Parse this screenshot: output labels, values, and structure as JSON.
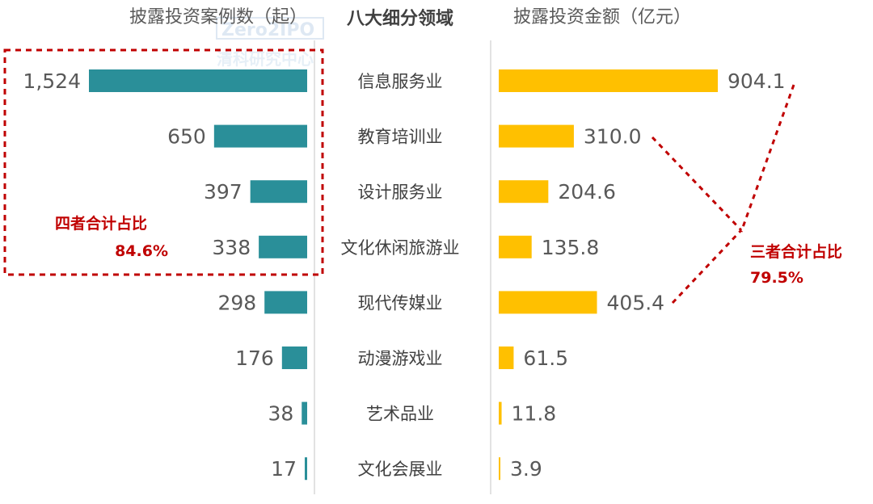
{
  "chart_data": {
    "type": "bar",
    "orientation": "horizontal",
    "center_header": "八大细分领域",
    "categories": [
      "信息服务业",
      "教育培训业",
      "设计服务业",
      "文化休闲旅游业",
      "现代传媒业",
      "动漫游戏业",
      "艺术品业",
      "文化会展业"
    ],
    "series": [
      {
        "name": "披露投资案例数（起）",
        "values": [
          1524,
          650,
          397,
          338,
          298,
          176,
          38,
          17
        ],
        "labels": [
          "1,524",
          "650",
          "397",
          "338",
          "298",
          "176",
          "38",
          "17"
        ],
        "color": "#2a8f99",
        "direction": "left"
      },
      {
        "name": "披露投资金额（亿元）",
        "values": [
          904.1,
          310.0,
          204.6,
          135.8,
          405.4,
          61.5,
          11.8,
          3.9
        ],
        "labels": [
          "904.1",
          "310.0",
          "204.6",
          "135.8",
          "405.4",
          "61.5",
          "11.8",
          "3.9"
        ],
        "color": "#ffc000",
        "direction": "right"
      }
    ],
    "annotations": [
      {
        "line1": "四者合计占比",
        "line2": "84.6%",
        "covers": "left series, first four categories"
      },
      {
        "line1": "三者合计占比",
        "line2": "79.5%",
        "covers": "信息服务业, 教育培训业, 现代传媒业 amounts"
      }
    ],
    "annotation_color": "#c00000",
    "watermark": "Zero2IPO 清科研究中心"
  }
}
